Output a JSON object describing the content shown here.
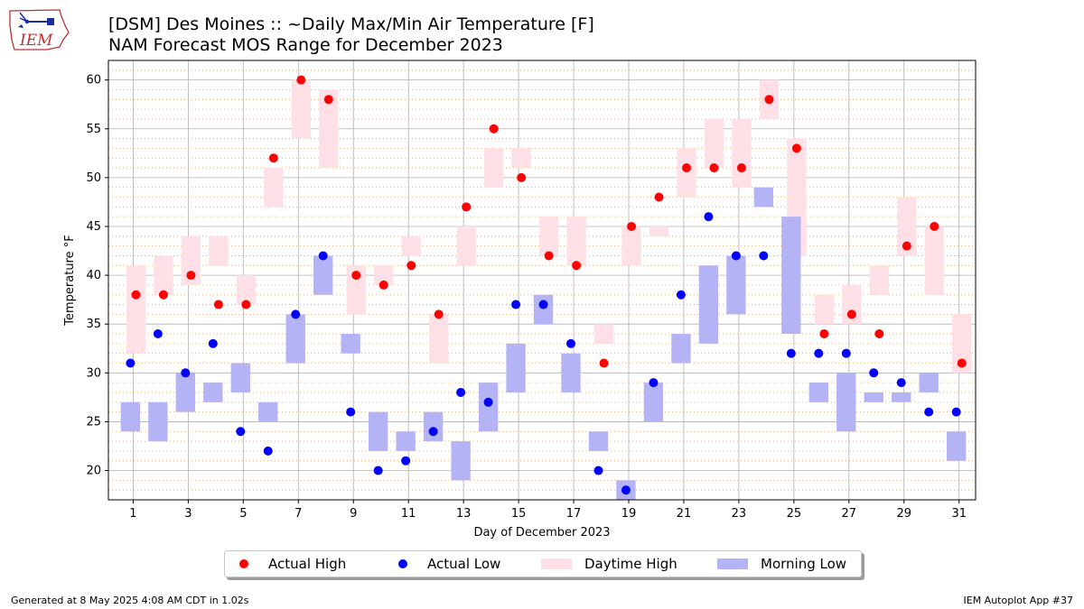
{
  "header": {
    "logo_text": "IEM",
    "title_line1": "[DSM] Des Moines :: ~Daily Max/Min Air Temperature [F]",
    "title_line2": "NAM Forecast MOS Range for December 2023"
  },
  "footer": {
    "left": "Generated at 8 May 2025 4:08 AM CDT in 1.02s",
    "right": "IEM Autoplot App #37"
  },
  "colors": {
    "actual_high": "#ff0000",
    "actual_low": "#0000ff",
    "daytime_high": "#ffe0e6",
    "morning_low": "#b3b3f5"
  },
  "chart_data": {
    "type": "bar",
    "title": "[DSM] Des Moines :: ~Daily Max/Min Air Temperature [F]",
    "subtitle": "NAM Forecast MOS Range for December 2023",
    "xlabel": "Day of December 2023",
    "ylabel": "Temperature °F",
    "xlim": [
      0.1,
      31.6
    ],
    "ylim": [
      17,
      62
    ],
    "xticks": [
      1,
      3,
      5,
      7,
      9,
      11,
      13,
      15,
      17,
      19,
      21,
      23,
      25,
      27,
      29,
      31
    ],
    "yticks": [
      20,
      25,
      30,
      35,
      40,
      45,
      50,
      55,
      60
    ],
    "grid": true,
    "minor_grid_step": 1,
    "legend_position": "bottom-center",
    "days": [
      1,
      2,
      3,
      4,
      5,
      6,
      7,
      8,
      9,
      10,
      11,
      12,
      13,
      14,
      15,
      16,
      17,
      18,
      19,
      20,
      21,
      22,
      23,
      24,
      25,
      26,
      27,
      28,
      29,
      30,
      31
    ],
    "series": [
      {
        "name": "Actual High",
        "kind": "scatter",
        "values": [
          38,
          38,
          40,
          37,
          37,
          52,
          60,
          58,
          40,
          39,
          41,
          36,
          47,
          55,
          50,
          42,
          41,
          31,
          45,
          48,
          51,
          51,
          51,
          58,
          53,
          34,
          36,
          34,
          43,
          45,
          31
        ]
      },
      {
        "name": "Actual Low",
        "kind": "scatter",
        "values": [
          31,
          34,
          30,
          33,
          24,
          22,
          36,
          42,
          26,
          20,
          21,
          24,
          28,
          27,
          37,
          37,
          33,
          20,
          18,
          29,
          38,
          46,
          42,
          42,
          32,
          32,
          32,
          30,
          29,
          26,
          26
        ]
      },
      {
        "name": "Daytime High",
        "kind": "range",
        "low": [
          32,
          38,
          39,
          41,
          37,
          47,
          54,
          51,
          36,
          39,
          42,
          31,
          41,
          49,
          51,
          42,
          41,
          33,
          41,
          44,
          48,
          51,
          49,
          56,
          42,
          35,
          35,
          38,
          42,
          38,
          30
        ],
        "high": [
          41,
          42,
          44,
          44,
          40,
          51,
          60,
          59,
          41,
          41,
          44,
          36,
          45,
          53,
          53,
          46,
          46,
          35,
          45,
          45,
          53,
          56,
          56,
          60,
          54,
          38,
          39,
          41,
          48,
          45,
          36
        ]
      },
      {
        "name": "Morning Low",
        "kind": "range",
        "low": [
          24,
          23,
          26,
          27,
          28,
          25,
          31,
          38,
          32,
          22,
          22,
          23,
          19,
          24,
          28,
          35,
          28,
          22,
          17,
          25,
          31,
          33,
          36,
          47,
          34,
          27,
          24,
          27,
          27,
          28,
          21
        ],
        "high": [
          27,
          27,
          30,
          29,
          31,
          27,
          36,
          42,
          34,
          26,
          24,
          26,
          23,
          29,
          33,
          38,
          32,
          24,
          19,
          29,
          34,
          41,
          42,
          49,
          46,
          29,
          30,
          28,
          28,
          30,
          24
        ]
      }
    ]
  }
}
